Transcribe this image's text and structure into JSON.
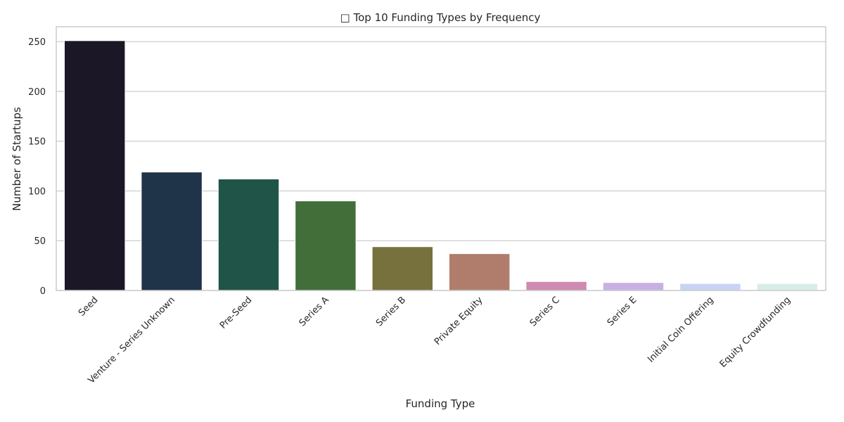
{
  "chart_data": {
    "type": "bar",
    "title": "□ Top 10 Funding Types by Frequency",
    "xlabel": "Funding Type",
    "ylabel": "Number of Startups",
    "categories": [
      "Seed",
      "Venture - Series Unknown",
      "Pre-Seed",
      "Series A",
      "Series B",
      "Private Equity",
      "Series C",
      "Series E",
      "Initial Coin Offering",
      "Equity Crowdfunding"
    ],
    "values": [
      251,
      119,
      112,
      90,
      44,
      37,
      9,
      8,
      7,
      7
    ],
    "colors": [
      "#1c1727",
      "#1f3349",
      "#205448",
      "#426f39",
      "#77713e",
      "#b07d6d",
      "#cf8ab3",
      "#c8b0e4",
      "#c7d4f2",
      "#d8ede9"
    ],
    "ylim": [
      0,
      265
    ],
    "yticks": [
      0,
      50,
      100,
      150,
      200,
      250
    ],
    "grid": true,
    "legend": "none"
  }
}
